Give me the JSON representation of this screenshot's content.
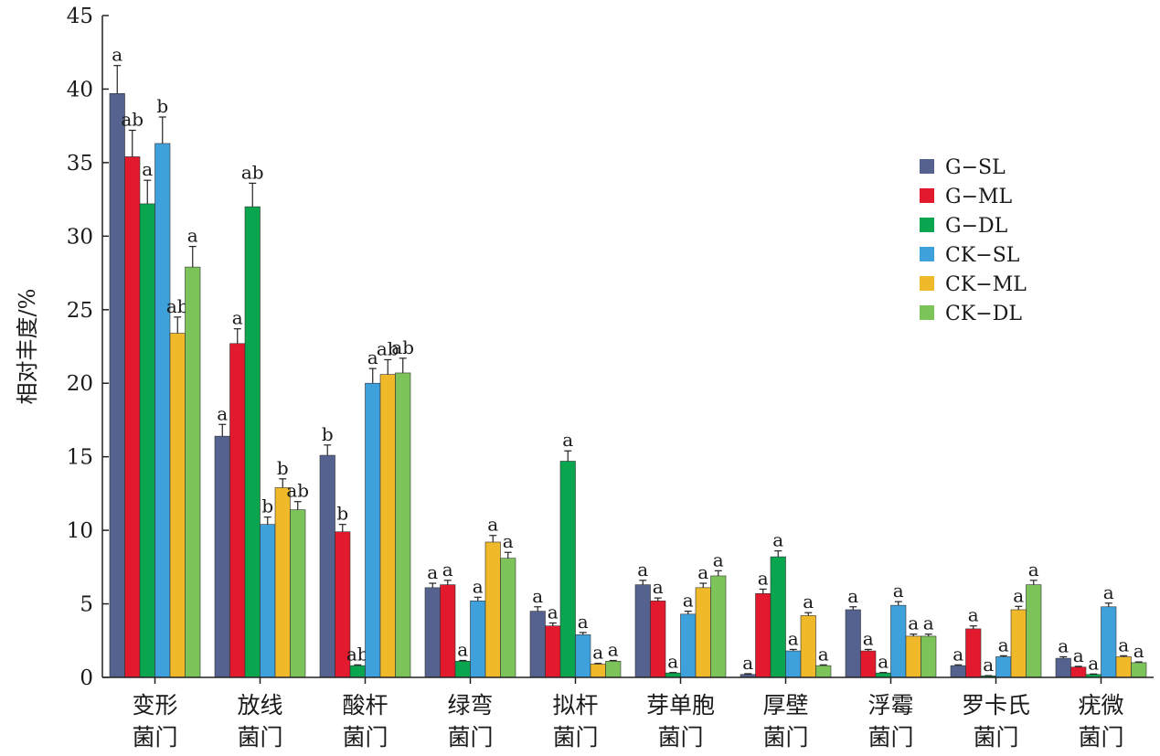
{
  "chart_data": {
    "type": "bar",
    "ylabel": "相对丰度/%",
    "ylim": [
      0,
      45
    ],
    "yticks": [
      0,
      5,
      10,
      15,
      20,
      25,
      30,
      35,
      40,
      45
    ],
    "legend_position": "right",
    "grid": false,
    "categories": [
      {
        "line1": "变形",
        "line2": "菌门"
      },
      {
        "line1": "放线",
        "line2": "菌门"
      },
      {
        "line1": "酸杆",
        "line2": "菌门"
      },
      {
        "line1": "绿弯",
        "line2": "菌门"
      },
      {
        "line1": "拟杆",
        "line2": "菌门"
      },
      {
        "line1": "芽单胞",
        "line2": "菌门"
      },
      {
        "line1": "厚壁",
        "line2": "菌门"
      },
      {
        "line1": "浮霉",
        "line2": "菌门"
      },
      {
        "line1": "罗卡氏",
        "line2": "菌门"
      },
      {
        "line1": "疣微",
        "line2": "菌门"
      }
    ],
    "series": [
      {
        "name": "G−SL",
        "color": "#55628f",
        "values": [
          39.7,
          16.4,
          15.1,
          6.1,
          4.5,
          6.3,
          0.2,
          4.6,
          0.8,
          1.3
        ],
        "errors": [
          1.9,
          0.8,
          0.7,
          0.3,
          0.3,
          0.3,
          0.05,
          0.2,
          0.05,
          0.1
        ],
        "labels": [
          "a",
          "a",
          "b",
          "a",
          "a",
          "a",
          "a",
          "a",
          "a",
          "a"
        ]
      },
      {
        "name": "G−ML",
        "color": "#e31a2d",
        "values": [
          35.4,
          22.7,
          9.9,
          6.3,
          3.5,
          5.2,
          5.7,
          1.8,
          3.3,
          0.7
        ],
        "errors": [
          1.8,
          1.0,
          0.5,
          0.3,
          0.2,
          0.2,
          0.3,
          0.1,
          0.2,
          0.05
        ],
        "labels": [
          "ab",
          "a",
          "b",
          "a",
          "a",
          "a",
          "a",
          "a",
          "a",
          "a"
        ]
      },
      {
        "name": "G−DL",
        "color": "#0aa64f",
        "values": [
          32.2,
          32.0,
          0.8,
          1.1,
          14.7,
          0.3,
          8.2,
          0.3,
          0.1,
          0.2
        ],
        "errors": [
          1.6,
          1.6,
          0.05,
          0.05,
          0.7,
          0.03,
          0.4,
          0.03,
          0.02,
          0.03
        ],
        "labels": [
          "a",
          "ab",
          "ab",
          "a",
          "a",
          "a",
          "a",
          "a",
          "a",
          "a"
        ]
      },
      {
        "name": "CK−SL",
        "color": "#3fa1dc",
        "values": [
          36.3,
          10.4,
          20.0,
          5.2,
          2.9,
          4.3,
          1.8,
          4.9,
          1.4,
          4.8
        ],
        "errors": [
          1.8,
          0.5,
          1.0,
          0.25,
          0.15,
          0.2,
          0.1,
          0.25,
          0.07,
          0.25
        ],
        "labels": [
          "b",
          "b",
          "a",
          "a",
          "a",
          "a",
          "a",
          "a",
          "a",
          "a"
        ]
      },
      {
        "name": "CK−ML",
        "color": "#f0b929",
        "values": [
          23.4,
          12.9,
          20.6,
          9.2,
          0.9,
          6.1,
          4.2,
          2.8,
          4.6,
          1.4
        ],
        "errors": [
          1.1,
          0.6,
          1.0,
          0.45,
          0.05,
          0.3,
          0.2,
          0.14,
          0.23,
          0.07
        ],
        "labels": [
          "ab",
          "b",
          "ab",
          "a",
          "a",
          "a",
          "a",
          "a",
          "a",
          "a"
        ]
      },
      {
        "name": "CK−DL",
        "color": "#7cc35a",
        "values": [
          27.9,
          11.4,
          20.7,
          8.1,
          1.1,
          6.9,
          0.8,
          2.8,
          6.3,
          1.0
        ],
        "errors": [
          1.4,
          0.55,
          1.0,
          0.4,
          0.05,
          0.35,
          0.05,
          0.14,
          0.3,
          0.05
        ],
        "labels": [
          "a",
          "ab",
          "ab",
          "a",
          "a",
          "a",
          "a",
          "a",
          "a",
          "a"
        ]
      }
    ]
  }
}
